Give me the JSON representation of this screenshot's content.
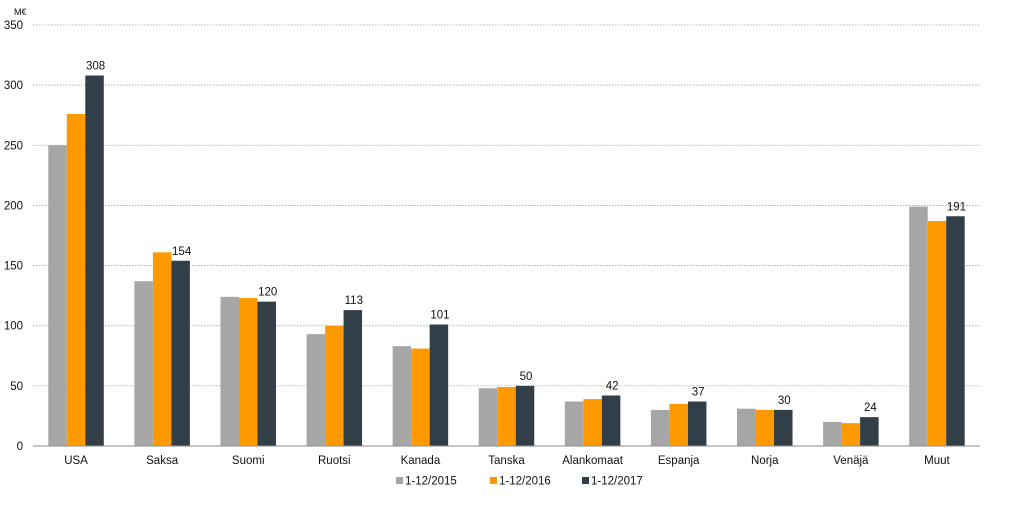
{
  "chart_data": {
    "type": "bar",
    "ylabel": "M€",
    "ylim": [
      0,
      350
    ],
    "yticks": [
      0,
      50,
      100,
      150,
      200,
      250,
      300,
      350
    ],
    "grid": true,
    "legend_position": "bottom",
    "categories": [
      "USA",
      "Saksa",
      "Suomi",
      "Ruotsi",
      "Kanada",
      "Tanska",
      "Alankomaat",
      "Espanja",
      "Norja",
      "Venäjä",
      "Muut"
    ],
    "series": [
      {
        "name": "1-12/2015",
        "color": "#a6a6a6",
        "values": [
          250,
          137,
          124,
          93,
          83,
          48,
          37,
          30,
          31,
          20,
          199
        ]
      },
      {
        "name": "1-12/2016",
        "color": "#ff9900",
        "values": [
          276,
          161,
          123,
          100,
          81,
          49,
          39,
          35,
          30,
          19,
          187
        ]
      },
      {
        "name": "1-12/2017",
        "color": "#323e48",
        "values": [
          308,
          154,
          120,
          113,
          101,
          50,
          42,
          37,
          30,
          24,
          191
        ],
        "data_labels": [
          "308",
          "154",
          "120",
          "113",
          "101",
          "50",
          "42",
          "37",
          "30",
          "24",
          "191"
        ]
      }
    ]
  }
}
